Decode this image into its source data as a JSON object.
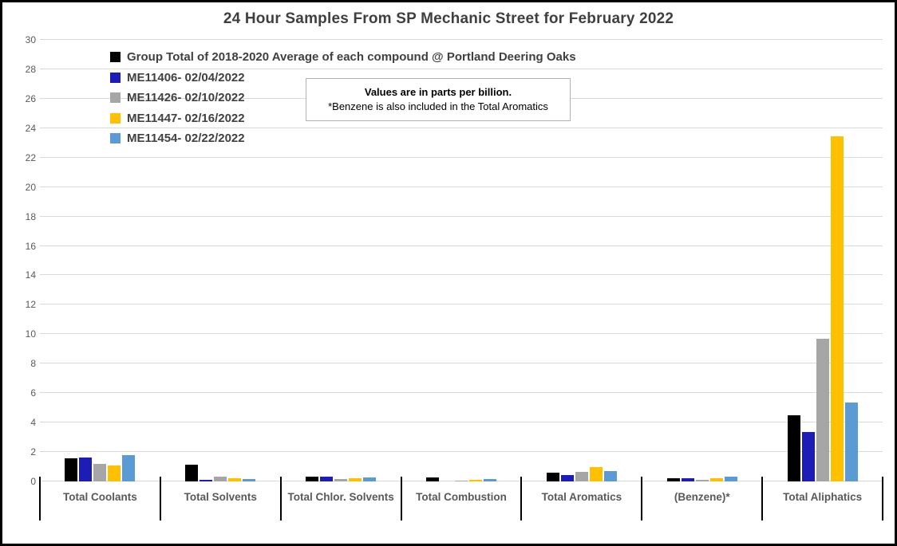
{
  "note": {
    "line1": "Values are in parts per billion.",
    "line2": "*Benzene is also included in the Total Aromatics"
  },
  "chart_data": {
    "type": "bar",
    "title": "24 Hour Samples From SP Mechanic Street for February 2022",
    "xlabel": "",
    "ylabel": "",
    "units": "parts per billion",
    "ylim": [
      0,
      30
    ],
    "ytick_step": 2,
    "grid": true,
    "legend_position": "inside-top-left",
    "categories": [
      "Total Coolants",
      "Total Solvents",
      "Total Chlor. Solvents",
      "Total Combustion",
      "Total Aromatics",
      "(Benzene)*",
      "Total Aliphatics"
    ],
    "series": [
      {
        "name": "Group Total of 2018-2020 Average of each compound @ Portland Deering Oaks",
        "color": "#000000",
        "values": [
          1.55,
          1.15,
          0.33,
          0.25,
          0.6,
          0.22,
          4.5
        ]
      },
      {
        "name": "ME11406- 02/04/2022",
        "color": "#1c1cb8",
        "values": [
          1.65,
          0.12,
          0.3,
          0,
          0.45,
          0.23,
          3.35
        ]
      },
      {
        "name": "ME11426- 02/10/2022",
        "color": "#a6a6a6",
        "values": [
          1.2,
          0.3,
          0.17,
          0.08,
          0.63,
          0.13,
          9.7
        ]
      },
      {
        "name": "ME11447- 02/16/2022",
        "color": "#ffc000",
        "values": [
          1.1,
          0.2,
          0.2,
          0.1,
          0.95,
          0.2,
          23.45
        ]
      },
      {
        "name": "ME11454- 02/22/2022",
        "color": "#5b9bd5",
        "values": [
          1.8,
          0.15,
          0.28,
          0.15,
          0.72,
          0.32,
          5.35
        ]
      }
    ]
  }
}
